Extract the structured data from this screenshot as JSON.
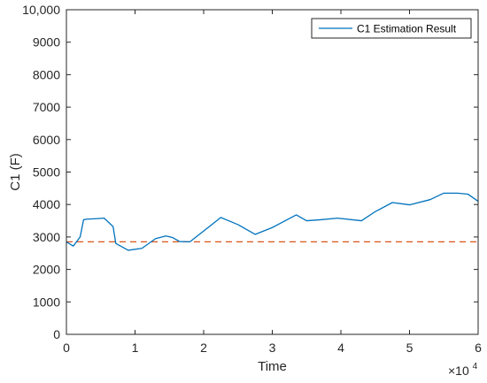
{
  "chart_data": {
    "type": "line",
    "title": "",
    "xlabel": "Time",
    "ylabel": "C1 (F)",
    "x_exponent_label": "×10",
    "x_exponent_power": "4",
    "xlim": [
      0,
      60000
    ],
    "ylim": [
      0,
      10000
    ],
    "xticks": [
      0,
      10000,
      20000,
      30000,
      40000,
      50000,
      60000
    ],
    "xtick_labels": [
      "0",
      "1",
      "2",
      "3",
      "4",
      "5",
      "6"
    ],
    "yticks": [
      0,
      1000,
      2000,
      3000,
      4000,
      5000,
      6000,
      7000,
      8000,
      9000,
      10000
    ],
    "ytick_labels": [
      "0",
      "1000",
      "2000",
      "3000",
      "4000",
      "5000",
      "6000",
      "7000",
      "8000",
      "9000",
      "10,000"
    ],
    "grid": false,
    "legend_position": "top-right",
    "series": [
      {
        "name": "C1 Estimation Result",
        "color": "#0072BD",
        "x": [
          0,
          1000,
          2000,
          2500,
          3000,
          4000,
          5500,
          6800,
          7200,
          9000,
          11000,
          13000,
          14500,
          15500,
          16500,
          18000,
          22500,
          25000,
          27500,
          30000,
          33500,
          35000,
          37000,
          39500,
          43000,
          45000,
          47500,
          50000,
          53000,
          55000,
          57000,
          58500,
          60000
        ],
        "y": [
          2850,
          2720,
          3000,
          3530,
          3550,
          3560,
          3580,
          3320,
          2800,
          2590,
          2650,
          2950,
          3030,
          2980,
          2860,
          2850,
          3600,
          3380,
          3080,
          3290,
          3680,
          3500,
          3530,
          3580,
          3500,
          3780,
          4060,
          3990,
          4150,
          4350,
          4350,
          4320,
          4100
        ]
      }
    ],
    "reference_line": {
      "y": 2850,
      "color": "#D95319",
      "style": "dashed"
    }
  }
}
